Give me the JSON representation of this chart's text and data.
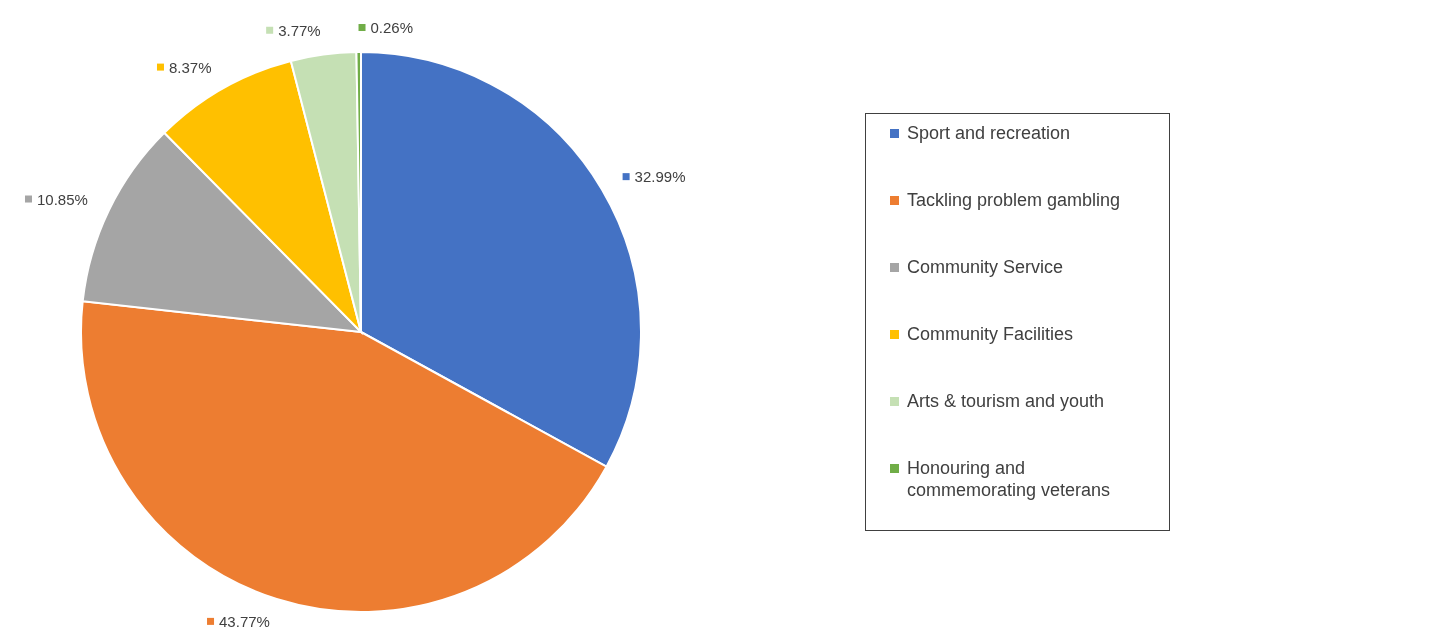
{
  "chart_data": {
    "type": "pie",
    "categories": [
      "Sport and recreation",
      "Tackling problem gambling",
      "Community Service",
      "Community Facilities",
      "Arts & tourism and youth",
      "Honouring and commemorating veterans"
    ],
    "values": [
      32.99,
      43.77,
      10.85,
      8.37,
      3.77,
      0.26
    ],
    "value_labels": [
      "32.99%",
      "43.77%",
      "10.85%",
      "8.37%",
      "3.77%",
      "0.26%"
    ],
    "colors": [
      "#4472c4",
      "#ed7d31",
      "#a5a5a5",
      "#ffc000",
      "#c5e0b4",
      "#70ad47"
    ],
    "legend": "right"
  }
}
